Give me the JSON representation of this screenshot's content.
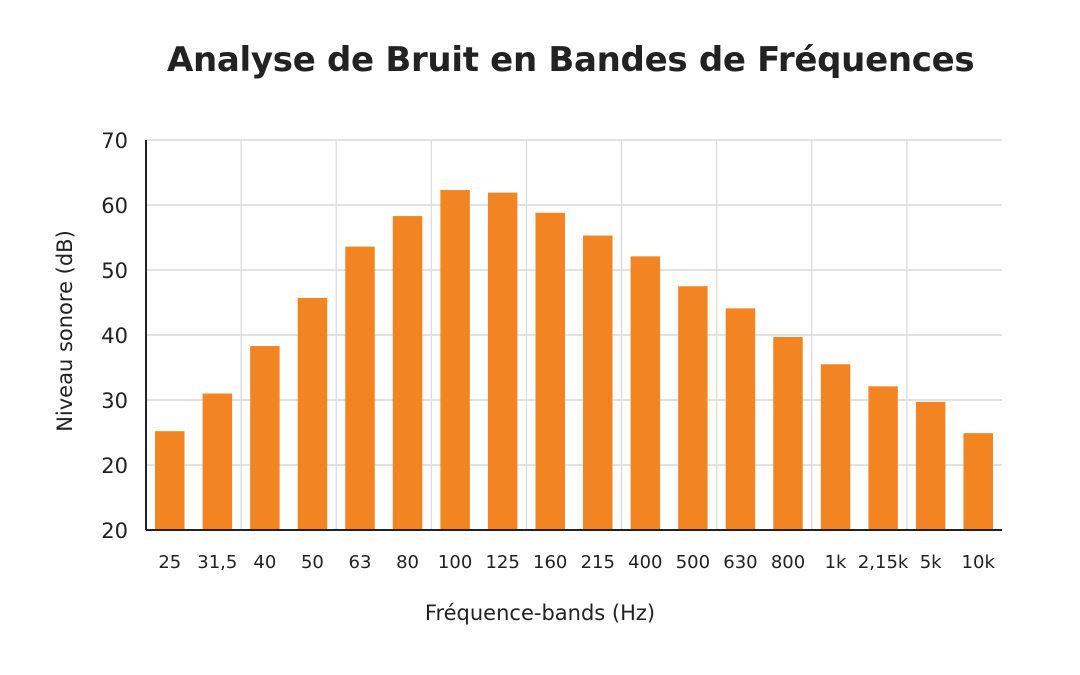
{
  "chart_data": {
    "type": "bar",
    "title": "Analyse de Bruit en Bandes de Fréquences",
    "xlabel": "Fréquence-bands (Hz)",
    "ylabel": "Niveau sonore (dB)",
    "categories": [
      "25",
      "31,5",
      "40",
      "50",
      "63",
      "80",
      "100",
      "125",
      "160",
      "215",
      "400",
      "500",
      "630",
      "800",
      "1k",
      "2,15k",
      "5k",
      "10k"
    ],
    "values": [
      25.2,
      31.0,
      38.3,
      45.7,
      53.6,
      58.3,
      62.3,
      61.9,
      58.8,
      55.3,
      52.1,
      47.5,
      44.1,
      39.7,
      35.5,
      32.1,
      29.7,
      24.9
    ],
    "y_tick_labels": [
      "20",
      "20",
      "30",
      "40",
      "50",
      "60",
      "70"
    ],
    "ylim": [
      10,
      70
    ],
    "grid": true,
    "legend": "none",
    "bar_color": "#F28522",
    "grid_color": "#D9D9D9",
    "axis_color": "#222222"
  }
}
